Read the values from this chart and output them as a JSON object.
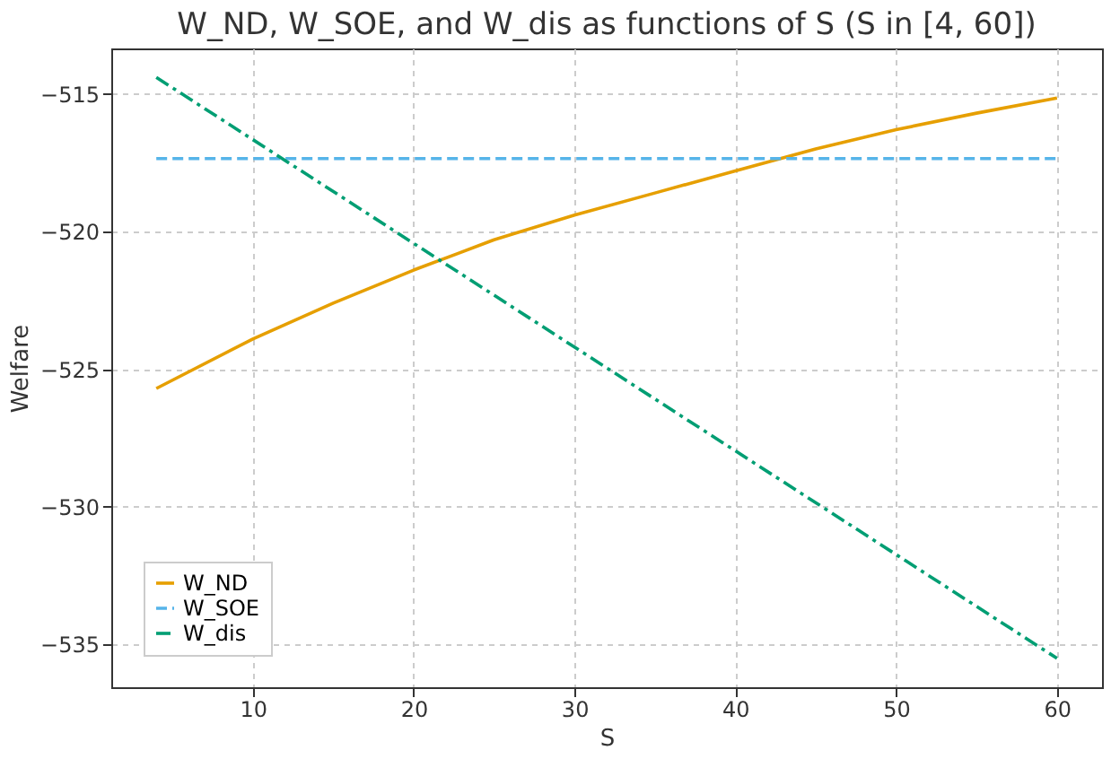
{
  "chart_data": {
    "type": "line",
    "title": "W_ND, W_SOE, and W_dis as functions of S (S in [4, 60])",
    "xlabel": "S",
    "ylabel": "Welfare",
    "xlim": [
      1.2,
      62.8
    ],
    "xticks": [
      10,
      20,
      30,
      40,
      50,
      60
    ],
    "ylim": [
      -536.55,
      -513.35
    ],
    "yticks": [
      -535,
      -530,
      -525,
      -520,
      -515
    ],
    "grid": true,
    "legend": "bottom left",
    "marker": "none",
    "series": [
      {
        "name": "W_ND",
        "color": "#e69f00",
        "line_style": "solid",
        "x": [
          4,
          10,
          15,
          20,
          25,
          30,
          35,
          40,
          45,
          50,
          55,
          60
        ],
        "values": [
          -525.7,
          -523.9,
          -522.6,
          -521.4,
          -520.3,
          -519.4,
          -518.6,
          -517.8,
          -517.0,
          -516.3,
          -515.7,
          -515.15
        ]
      },
      {
        "name": "W_SOE",
        "color": "#56b4e9",
        "line_style": "dashed",
        "x": [
          4,
          60
        ],
        "values": [
          -517.35,
          -517.35
        ]
      },
      {
        "name": "W_dis",
        "color": "#009e73",
        "line_style": "dashdot",
        "x": [
          4,
          60
        ],
        "values": [
          -514.4,
          -535.5
        ]
      }
    ]
  }
}
